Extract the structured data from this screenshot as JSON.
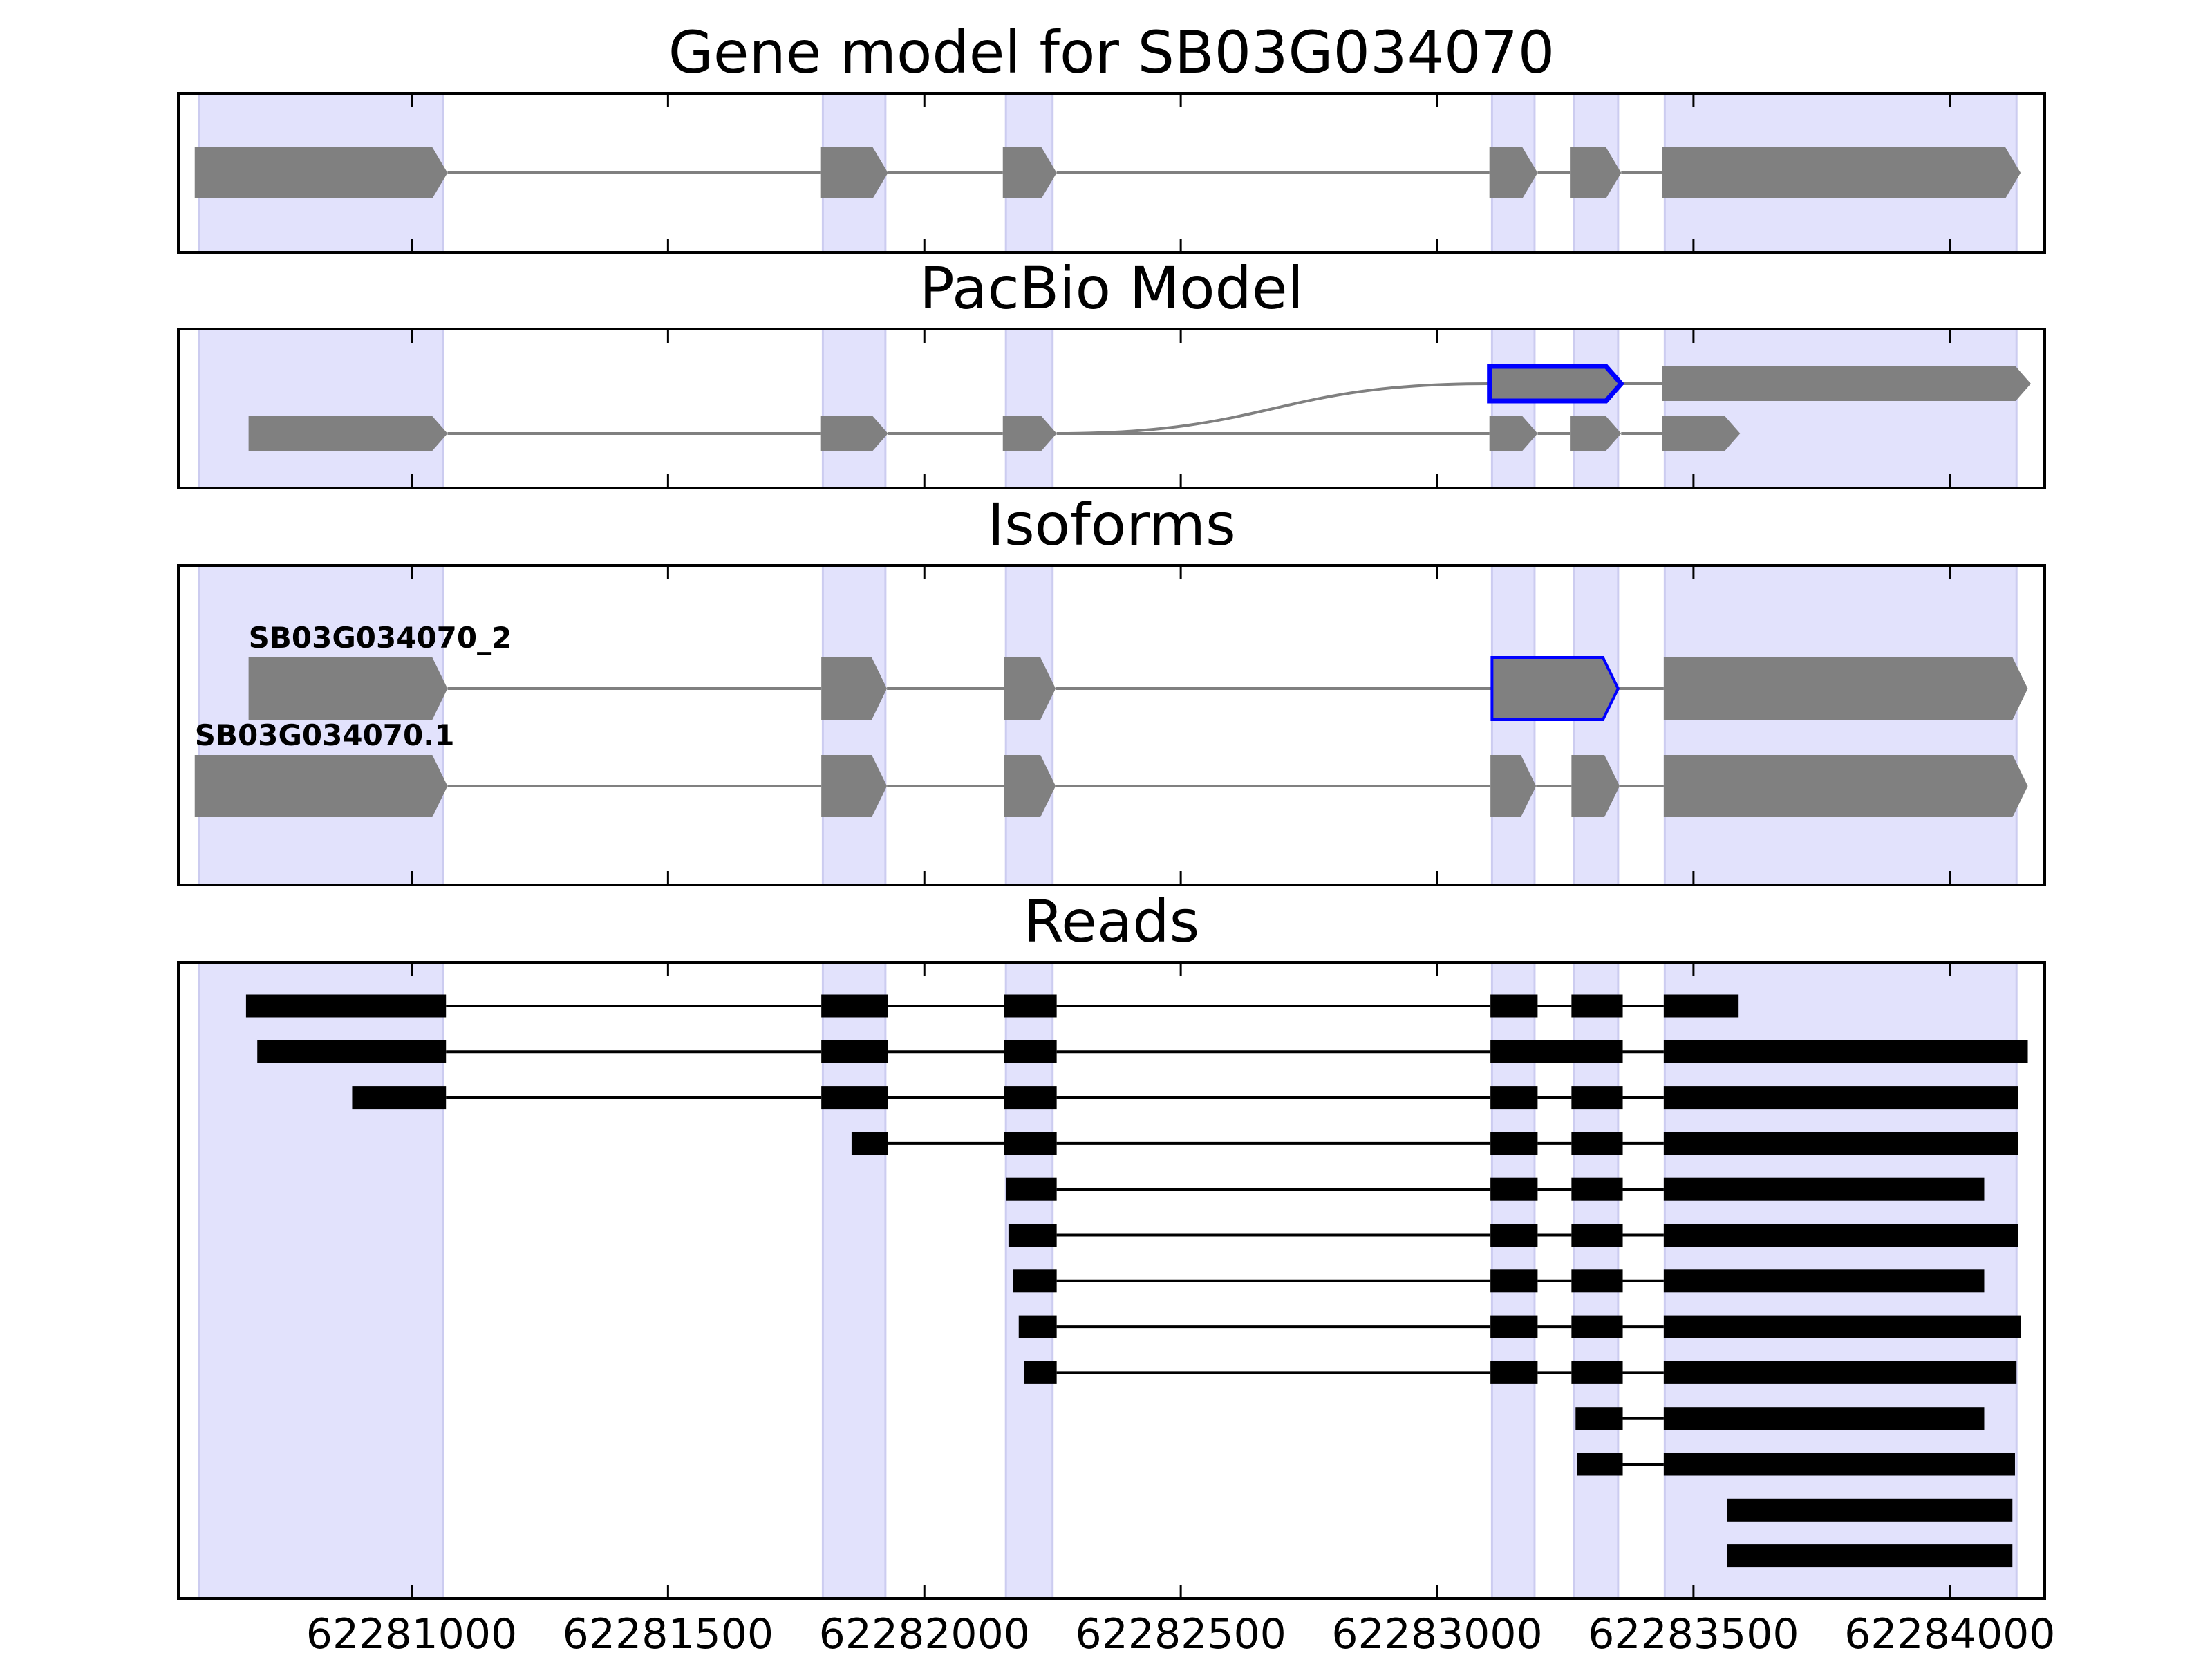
{
  "chart_data": [
    {
      "type": "gene",
      "title": "Gene model for SB03G034070",
      "xlim": [
        62280545,
        62284185
      ],
      "regions": [
        [
          62280586,
          62281061
        ],
        [
          62281802,
          62281924
        ],
        [
          62282159,
          62282250
        ],
        [
          62283107,
          62283190
        ],
        [
          62283267,
          62283353
        ],
        [
          62283444,
          62284130
        ]
      ],
      "region_color": "#e2e2fc",
      "color": "#808080",
      "line_color": "#808080",
      "outline_color": "#0000ff",
      "tracks": [
        {
          "exons": [
            [
              62280577,
              62281070
            ],
            [
              62281797,
              62281929
            ],
            [
              62282153,
              62282258
            ],
            [
              62283102,
              62283196
            ],
            [
              62283259,
              62283359
            ],
            [
              62283439,
              62284138
            ]
          ]
        }
      ]
    },
    {
      "type": "gene",
      "title": "PacBio Model",
      "xlim": [
        62280545,
        62284185
      ],
      "regions": [
        [
          62280586,
          62281061
        ],
        [
          62281802,
          62281924
        ],
        [
          62282159,
          62282250
        ],
        [
          62283107,
          62283190
        ],
        [
          62283267,
          62283353
        ],
        [
          62283444,
          62284130
        ]
      ],
      "region_color": "#e2e2fc",
      "color": "#808080",
      "line_color": "#808080",
      "outline_color": "#0000ff",
      "tracks": [
        {
          "exons": [
            [
              62283102,
              62283359
            ],
            [
              62283439,
              62284158
            ]
          ],
          "outline_exon": 0,
          "branch_from": 62282258
        },
        {
          "exons": [
            [
              62280682,
              62281070
            ],
            [
              62281797,
              62281929
            ],
            [
              62282153,
              62282258
            ],
            [
              62283102,
              62283196
            ],
            [
              62283259,
              62283359
            ],
            [
              62283439,
              62283591
            ]
          ]
        }
      ]
    },
    {
      "type": "gene",
      "title": "Isoforms",
      "xlim": [
        62280545,
        62284185
      ],
      "regions": [
        [
          62280586,
          62281061
        ],
        [
          62281802,
          62281924
        ],
        [
          62282159,
          62282250
        ],
        [
          62283107,
          62283190
        ],
        [
          62283267,
          62283353
        ],
        [
          62283444,
          62284130
        ]
      ],
      "region_color": "#e2e2fc",
      "color": "#808080",
      "line_color": "#808080",
      "outline_color": "#0000ff",
      "tracks": [
        {
          "name": "SB03G034070_2",
          "exons": [
            [
              62280682,
              62281070
            ],
            [
              62281799,
              62281927
            ],
            [
              62282156,
              62282256
            ],
            [
              62283107,
              62283353
            ],
            [
              62283442,
              62284152
            ]
          ],
          "outline_exon": 3
        },
        {
          "name": "SB03G034070.1",
          "exons": [
            [
              62280577,
              62281070
            ],
            [
              62281799,
              62281927
            ],
            [
              62282156,
              62282256
            ],
            [
              62283104,
              62283193
            ],
            [
              62283262,
              62283356
            ],
            [
              62283442,
              62284152
            ]
          ]
        }
      ]
    },
    {
      "type": "reads",
      "title": "Reads",
      "xlim": [
        62280545,
        62284185
      ],
      "xticks": [
        62281000,
        62281500,
        62282000,
        62282500,
        62283000,
        62283500,
        62284000
      ],
      "regions": [
        [
          62280586,
          62281061
        ],
        [
          62281802,
          62281924
        ],
        [
          62282159,
          62282250
        ],
        [
          62283107,
          62283190
        ],
        [
          62283267,
          62283353
        ],
        [
          62283444,
          62284130
        ]
      ],
      "region_color": "#e2e2fc",
      "color": "#000000",
      "line_color": "#000000",
      "tracks": [
        {
          "exons": [
            [
              62280677,
              62281067
            ],
            [
              62281799,
              62281929
            ],
            [
              62282156,
              62282258
            ],
            [
              62283104,
              62283196
            ],
            [
              62283262,
              62283362
            ],
            [
              62283442,
              62283588
            ]
          ]
        },
        {
          "exons": [
            [
              62280699,
              62281067
            ],
            [
              62281799,
              62281929
            ],
            [
              62282156,
              62282258
            ],
            [
              62283104,
              62283362
            ],
            [
              62283442,
              62284152
            ]
          ]
        },
        {
          "exons": [
            [
              62280884,
              62281067
            ],
            [
              62281799,
              62281929
            ],
            [
              62282156,
              62282258
            ],
            [
              62283104,
              62283196
            ],
            [
              62283262,
              62283362
            ],
            [
              62283442,
              62284133
            ]
          ]
        },
        {
          "exons": [
            [
              62281858,
              62281929
            ],
            [
              62282156,
              62282258
            ],
            [
              62283104,
              62283196
            ],
            [
              62283262,
              62283362
            ],
            [
              62283442,
              62284133
            ]
          ]
        },
        {
          "exons": [
            [
              62282159,
              62282258
            ],
            [
              62283104,
              62283196
            ],
            [
              62283262,
              62283362
            ],
            [
              62283442,
              62284067
            ]
          ]
        },
        {
          "exons": [
            [
              62282164,
              62282258
            ],
            [
              62283104,
              62283196
            ],
            [
              62283262,
              62283362
            ],
            [
              62283442,
              62284133
            ]
          ]
        },
        {
          "exons": [
            [
              62282173,
              62282258
            ],
            [
              62283104,
              62283196
            ],
            [
              62283262,
              62283362
            ],
            [
              62283442,
              62284067
            ]
          ]
        },
        {
          "exons": [
            [
              62282184,
              62282258
            ],
            [
              62283104,
              62283196
            ],
            [
              62283262,
              62283362
            ],
            [
              62283442,
              62284138
            ]
          ]
        },
        {
          "exons": [
            [
              62282195,
              62282258
            ],
            [
              62283104,
              62283196
            ],
            [
              62283262,
              62283362
            ],
            [
              62283442,
              62284130
            ]
          ]
        },
        {
          "exons": [
            [
              62283270,
              62283362
            ],
            [
              62283442,
              62284067
            ]
          ]
        },
        {
          "exons": [
            [
              62283273,
              62283362
            ],
            [
              62283442,
              62284127
            ]
          ]
        },
        {
          "exons": [
            [
              62283566,
              62284122
            ]
          ]
        },
        {
          "exons": [
            [
              62283566,
              62284122
            ]
          ]
        }
      ]
    }
  ]
}
